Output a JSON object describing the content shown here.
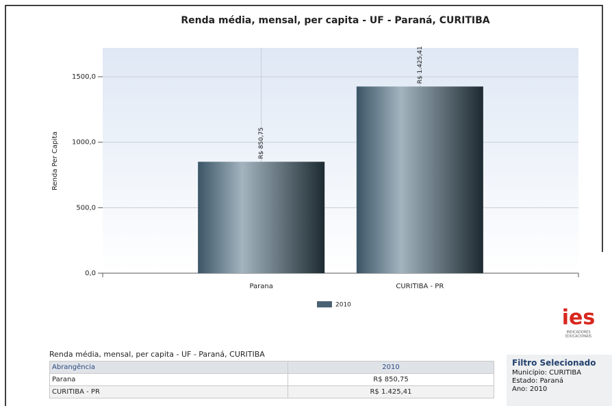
{
  "chart_data": {
    "type": "bar",
    "title": "Renda média, mensal, per capita - UF - Paraná, CURITIBA",
    "y_label": "Renda Per Capita",
    "categories": [
      "Parana",
      "CURITIBA - PR"
    ],
    "series": [
      {
        "name": "2010",
        "color": "#4a6273",
        "values": [
          850.75,
          1425.41
        ],
        "value_labels": [
          "R$ 850,75",
          "R$ 1.425,41"
        ]
      }
    ],
    "ylim": [
      0,
      1720
    ],
    "yticks": [
      {
        "value": 0,
        "label": "0,0"
      },
      {
        "value": 500,
        "label": "500,0"
      },
      {
        "value": 1000,
        "label": "1000,0"
      },
      {
        "value": 1500,
        "label": "1500,0"
      }
    ],
    "grid": true
  },
  "logo": {
    "name": "ies",
    "tagline": [
      "INDICADORES",
      "EDUCACIONAIS"
    ]
  },
  "table": {
    "caption": "Renda média, mensal, per capita - UF - Paraná, CURITIBA",
    "header": [
      "Abrangência",
      "2010"
    ],
    "rows": [
      [
        "Parana",
        "R$ 850,75"
      ],
      [
        "CURITIBA - PR",
        "R$ 1.425,41"
      ]
    ]
  },
  "filter": {
    "title": "Filtro Selecionado",
    "items": [
      "Município: CURITIBA",
      "Estado: Paraná",
      "Ano: 2010"
    ]
  }
}
